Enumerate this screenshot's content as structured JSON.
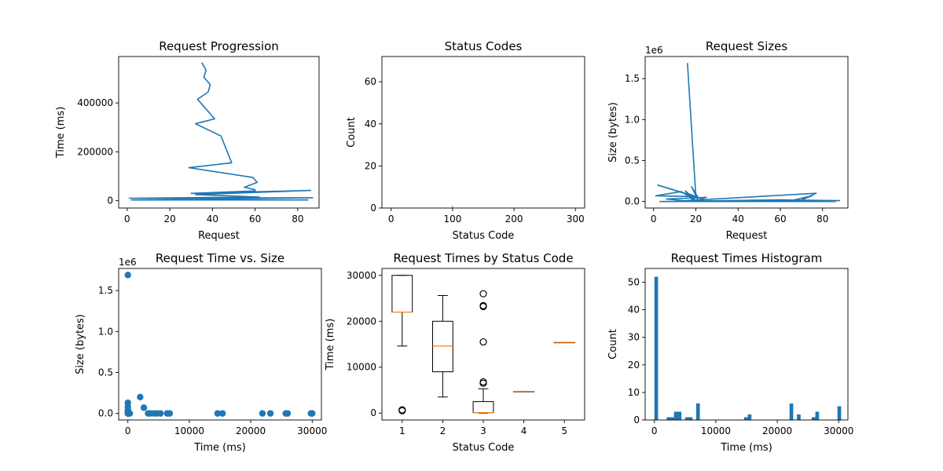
{
  "chart_data": [
    {
      "type": "line",
      "title": "Request Progression",
      "xlabel": "Request",
      "ylabel": "Time (ms)",
      "xlim": [
        -4,
        90
      ],
      "ylim": [
        -30000,
        590000
      ],
      "xticks": [
        0,
        20,
        40,
        60,
        80
      ],
      "yticks": [
        0,
        200000,
        400000
      ],
      "x": [
        35,
        37,
        36,
        39,
        38,
        33,
        41,
        32,
        44,
        49,
        29,
        59,
        61,
        55,
        60,
        60,
        30,
        86,
        32,
        62,
        1,
        87,
        2,
        85
      ],
      "y": [
        565000,
        535000,
        505000,
        475000,
        445000,
        415000,
        335000,
        315000,
        265000,
        155000,
        135000,
        95000,
        75000,
        55000,
        45000,
        40000,
        30000,
        42000,
        25000,
        15000,
        10000,
        12000,
        3000,
        3000
      ],
      "color": "#1f77b4"
    },
    {
      "type": "bar",
      "title": "Status Codes",
      "xlabel": "Status Code",
      "ylabel": "Count",
      "xlim": [
        -15,
        315
      ],
      "ylim": [
        0,
        72
      ],
      "xticks": [
        0,
        100,
        200,
        300
      ],
      "yticks": [
        0,
        20,
        40,
        60
      ],
      "categories": [
        100
      ],
      "values": [
        1
      ],
      "color": "#1f77b4"
    },
    {
      "type": "line",
      "title": "Request Sizes",
      "xlabel": "Request",
      "ylabel": "Size (bytes)",
      "scale_label": "1e6",
      "xlim": [
        -4,
        92
      ],
      "ylim": [
        -0.08,
        1.77
      ],
      "xticks": [
        0,
        20,
        40,
        60,
        80
      ],
      "yticks": [
        0.0,
        0.5,
        1.0,
        1.5
      ],
      "x": [
        16,
        20,
        21,
        18,
        21,
        16,
        22,
        2,
        20,
        1,
        13,
        20,
        15,
        19,
        25,
        6,
        18,
        15,
        77,
        70,
        75,
        65,
        3,
        88,
        60,
        5,
        80,
        86,
        10
      ],
      "y": [
        1.69,
        0.06,
        0.02,
        0.18,
        0.05,
        0.1,
        0.04,
        0.2,
        0.06,
        0.07,
        0.12,
        0.01,
        0.13,
        0.0,
        0.05,
        0.03,
        0.0,
        0.01,
        0.1,
        0.02,
        0.07,
        0.01,
        0.0,
        0.01,
        0.02,
        0.0,
        0.0,
        0.0,
        0.0
      ],
      "color": "#1f77b4"
    },
    {
      "type": "scatter",
      "title": "Request Time vs. Size",
      "xlabel": "Time (ms)",
      "ylabel": "Size (bytes)",
      "scale_label": "1e6",
      "xlim": [
        -1500,
        31500
      ],
      "ylim": [
        -0.08,
        1.77
      ],
      "xticks": [
        0,
        10000,
        20000,
        30000
      ],
      "yticks": [
        0.0,
        0.5,
        1.0,
        1.5
      ],
      "x": [
        0,
        0,
        0,
        0,
        0,
        0,
        0,
        0,
        0,
        0,
        100,
        200,
        300,
        2000,
        2600,
        3300,
        3600,
        4200,
        4700,
        5300,
        6400,
        6800,
        14600,
        15400,
        21900,
        23200,
        25700,
        26000,
        29800,
        30000
      ],
      "y": [
        1.69,
        0.13,
        0.08,
        0.04,
        0.02,
        0.01,
        0.0,
        0.0,
        0.0,
        0.0,
        0.0,
        0.0,
        0.0,
        0.2,
        0.07,
        0.0,
        0.0,
        0.0,
        0.0,
        0.0,
        0.0,
        0.0,
        0.0,
        0.0,
        0.0,
        0.0,
        0.0,
        0.0,
        0.0,
        0.0
      ],
      "color": "#1f77b4"
    },
    {
      "type": "box",
      "title": "Request Times by Status Code",
      "xlabel": "Status Code",
      "ylabel": "Time (ms)",
      "xlim": [
        0.5,
        5.5
      ],
      "ylim": [
        -1500,
        31500
      ],
      "xticks": [
        1,
        2,
        3,
        4,
        5
      ],
      "yticks": [
        0,
        10000,
        20000,
        30000
      ],
      "categories": [
        "1",
        "2",
        "3",
        "4",
        "5"
      ],
      "boxes": [
        {
          "min": 14600,
          "q1": 22000,
          "median": 22000,
          "q3": 30000,
          "max": 30000,
          "outliers": [
            500,
            700
          ]
        },
        {
          "min": 3500,
          "q1": 9000,
          "median": 14600,
          "q3": 20000,
          "max": 25600,
          "outliers": []
        },
        {
          "min": 0,
          "q1": 100,
          "median": 100,
          "q3": 2500,
          "max": 5300,
          "outliers": [
            6500,
            6800,
            15500,
            23200,
            23400,
            26000
          ]
        },
        {
          "min": 4700,
          "q1": 4700,
          "median": 4700,
          "q3": 4700,
          "max": 4700,
          "outliers": []
        },
        {
          "min": 15400,
          "q1": 15400,
          "median": 15400,
          "q3": 15400,
          "max": 15400,
          "outliers": []
        }
      ],
      "box_color": "#000000",
      "median_color": "#ff7f0e"
    },
    {
      "type": "bar",
      "title": "Request Times Histogram",
      "xlabel": "Time (ms)",
      "ylabel": "Count",
      "xlim": [
        -1500,
        31500
      ],
      "ylim": [
        0,
        55
      ],
      "xticks": [
        0,
        10000,
        20000,
        30000
      ],
      "yticks": [
        0,
        10,
        20,
        30,
        40,
        50
      ],
      "bin_width": 600,
      "x": [
        0,
        2000,
        2600,
        3200,
        3800,
        5000,
        5600,
        6800,
        14600,
        15200,
        22000,
        23200,
        25600,
        26200,
        29800
      ],
      "values": [
        52,
        1,
        1,
        3,
        3,
        1,
        1,
        6,
        1,
        2,
        6,
        2,
        1,
        3,
        5
      ],
      "color": "#1f77b4"
    }
  ]
}
